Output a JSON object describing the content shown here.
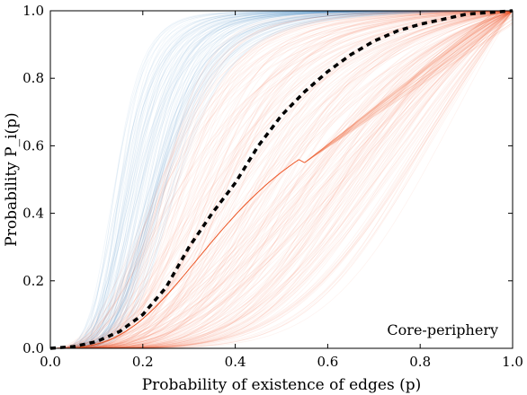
{
  "chart_data": {
    "type": "line",
    "title": "",
    "xlabel": "Probability of existence of edges (p)",
    "ylabel": "Probability P_i(p)",
    "xlim": [
      0.0,
      1.0
    ],
    "ylim": [
      0.0,
      1.0
    ],
    "x_ticks": [
      "0.0",
      "0.2",
      "0.4",
      "0.6",
      "0.8",
      "1.0"
    ],
    "y_ticks": [
      "0.0",
      "0.2",
      "0.4",
      "0.6",
      "0.8",
      "1.0"
    ],
    "grid": false,
    "annotation": "Core-periphery",
    "colors": {
      "blue_family": "#4a90c8",
      "orange_family": "#f05a28",
      "mean": "#000000"
    },
    "series": [
      {
        "style": "dashed",
        "color": "#000000",
        "x": [
          0.0,
          0.05,
          0.1,
          0.15,
          0.2,
          0.25,
          0.3,
          0.35,
          0.4,
          0.45,
          0.5,
          0.55,
          0.6,
          0.65,
          0.7,
          0.75,
          0.8,
          0.85,
          0.9,
          0.95,
          1.0
        ],
        "values": [
          0.0,
          0.005,
          0.02,
          0.05,
          0.1,
          0.18,
          0.3,
          0.4,
          0.49,
          0.6,
          0.69,
          0.76,
          0.82,
          0.87,
          0.91,
          0.94,
          0.96,
          0.975,
          0.99,
          0.995,
          1.0
        ]
      }
    ]
  }
}
